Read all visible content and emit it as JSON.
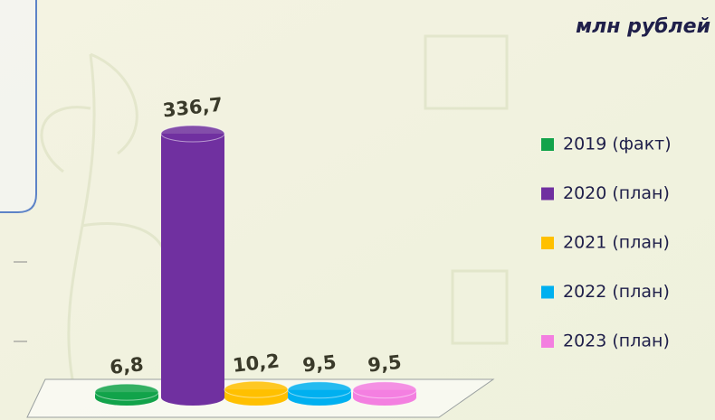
{
  "chart_data": {
    "type": "bar",
    "subtitle": "млн рублей",
    "categories": [
      "2019 (факт)",
      "2020 (план)",
      "2021 (план)",
      "2022 (план)",
      "2023 (план)"
    ],
    "values": [
      6.8,
      336.7,
      10.2,
      9.5,
      9.5
    ],
    "value_labels": [
      "6,8",
      "336,7",
      "10,2",
      "9,5",
      "9,5"
    ],
    "colors": [
      "#12a34a",
      "#7030a0",
      "#ffc000",
      "#00b0f0",
      "#f37fe0"
    ]
  }
}
